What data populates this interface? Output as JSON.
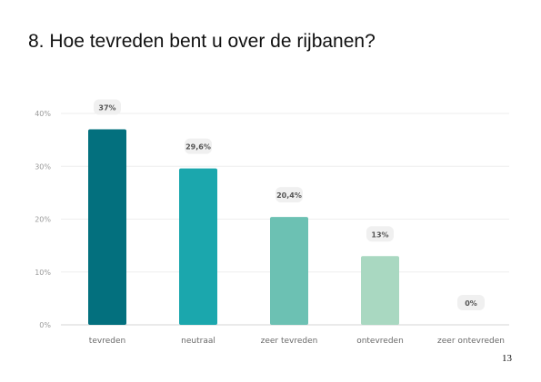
{
  "slide": {
    "title": "8. Hoe tevreden bent u over de rijbanen?",
    "page_number": "13"
  },
  "chart_data": {
    "type": "bar",
    "title": "",
    "xlabel": "",
    "ylabel": "",
    "ylim": [
      0,
      40
    ],
    "yticks": [
      0,
      10,
      20,
      30,
      40
    ],
    "ytick_labels": [
      "0%",
      "10%",
      "20%",
      "30%",
      "40%"
    ],
    "grid": true,
    "categories": [
      "tevreden",
      "neutraal",
      "zeer tevreden",
      "ontevreden",
      "zeer ontevreden"
    ],
    "values": [
      37,
      29.6,
      20.4,
      13,
      0
    ],
    "value_labels": [
      "37%",
      "29,6%",
      "20,4%",
      "13%",
      "0%"
    ],
    "colors": [
      "#03707e",
      "#1ba7ad",
      "#6cc1b3",
      "#a9d8c1",
      "#d9eee5"
    ]
  }
}
